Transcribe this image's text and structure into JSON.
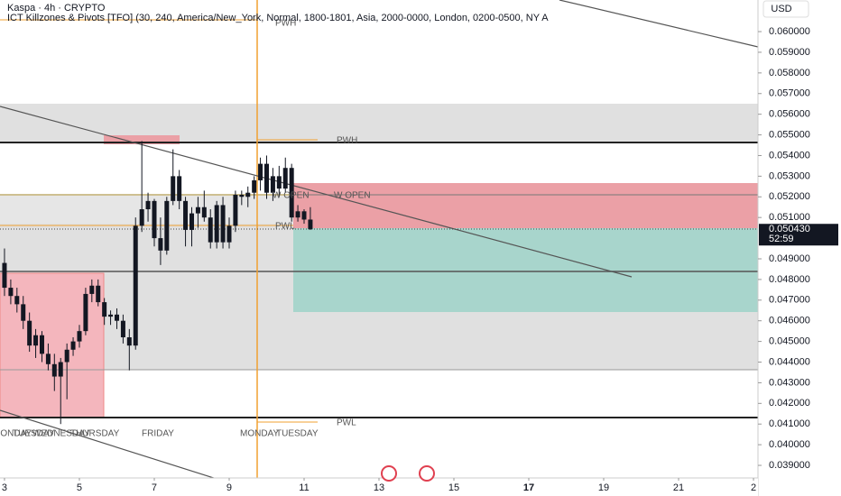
{
  "chart_data": {
    "type": "candlestick",
    "title": "Kaspa · 4h · CRYPTO",
    "subtitle": "ICT Killzones & Pivots [TFO] (30, 240, America/New_York, Normal, 1800-1801, Asia, 2000-0000, London, 0200-0500, NY A",
    "currency": "USD",
    "color": "#131722",
    "x": [
      3,
      3.167,
      3.333,
      3.5,
      3.667,
      3.833,
      4,
      4.167,
      4.333,
      4.5,
      4.667,
      4.833,
      5,
      5.167,
      5.333,
      5.5,
      5.667,
      5.833,
      6,
      6.167,
      6.333,
      6.5,
      6.667,
      6.833,
      7,
      7.167,
      7.333,
      7.5,
      7.667,
      7.833,
      8,
      8.167,
      8.333,
      8.5,
      8.667,
      8.833,
      9,
      9.167,
      9.333,
      9.5,
      9.667,
      9.833,
      10,
      10.167,
      10.333,
      10.5,
      10.667,
      10.833,
      11,
      11.167
    ],
    "open": [
      0.0488,
      0.0476,
      0.0472,
      0.0468,
      0.046,
      0.0448,
      0.0453,
      0.0444,
      0.0439,
      0.0433,
      0.044,
      0.0446,
      0.045,
      0.0455,
      0.0473,
      0.0477,
      0.0469,
      0.0462,
      0.0463,
      0.046,
      0.0452,
      0.0448,
      0.0506,
      0.0514,
      0.0518,
      0.05,
      0.0494,
      0.0518,
      0.053,
      0.0518,
      0.0504,
      0.0512,
      0.0515,
      0.051,
      0.0498,
      0.0516,
      0.0498,
      0.0506,
      0.0521,
      0.052,
      0.0522,
      0.0528,
      0.0536,
      0.0522,
      0.053,
      0.0524,
      0.0534,
      0.051,
      0.0513,
      0.0509
    ],
    "high": [
      0.0495,
      0.048,
      0.0476,
      0.0472,
      0.0464,
      0.0456,
      0.0455,
      0.0449,
      0.0444,
      0.0442,
      0.0449,
      0.0452,
      0.0458,
      0.0476,
      0.048,
      0.048,
      0.0471,
      0.0465,
      0.0466,
      0.0463,
      0.0456,
      0.051,
      0.0547,
      0.0522,
      0.0519,
      0.051,
      0.052,
      0.0543,
      0.0533,
      0.052,
      0.0515,
      0.052,
      0.0523,
      0.0514,
      0.0518,
      0.052,
      0.051,
      0.0523,
      0.0523,
      0.0525,
      0.053,
      0.0539,
      0.054,
      0.0534,
      0.0535,
      0.0539,
      0.0536,
      0.0516,
      0.0514,
      0.0515
    ],
    "low": [
      0.0472,
      0.0468,
      0.0464,
      0.0456,
      0.0445,
      0.0442,
      0.044,
      0.0436,
      0.0426,
      0.041,
      0.0422,
      0.0443,
      0.0447,
      0.0453,
      0.0469,
      0.0467,
      0.0458,
      0.0458,
      0.0456,
      0.0449,
      0.0436,
      0.0446,
      0.0503,
      0.0508,
      0.0496,
      0.0487,
      0.0492,
      0.0516,
      0.0514,
      0.0496,
      0.0496,
      0.0505,
      0.0508,
      0.0495,
      0.0495,
      0.0495,
      0.0495,
      0.0503,
      0.0516,
      0.0515,
      0.0519,
      0.0523,
      0.0519,
      0.0518,
      0.052,
      0.0522,
      0.0508,
      0.0508,
      0.0507,
      0.0504
    ],
    "close": [
      0.0476,
      0.0472,
      0.0468,
      0.046,
      0.0448,
      0.0453,
      0.0444,
      0.0439,
      0.0433,
      0.044,
      0.0446,
      0.045,
      0.0455,
      0.0473,
      0.0477,
      0.0469,
      0.0462,
      0.0463,
      0.046,
      0.0452,
      0.0448,
      0.0506,
      0.0514,
      0.0518,
      0.05,
      0.0494,
      0.0518,
      0.053,
      0.0518,
      0.0504,
      0.0512,
      0.0515,
      0.051,
      0.0498,
      0.0516,
      0.0498,
      0.0506,
      0.0521,
      0.052,
      0.0522,
      0.0528,
      0.0536,
      0.0522,
      0.053,
      0.0524,
      0.0534,
      0.051,
      0.0513,
      0.0509,
      0.05043
    ],
    "xlim": [
      2.88,
      23.12
    ],
    "xticks": [
      3,
      5,
      7,
      9,
      11,
      13,
      15,
      17,
      19,
      21,
      {
        "value": 23,
        "label": "2"
      }
    ],
    "ylim": [
      0.03839,
      0.06153
    ],
    "yticks": [
      {
        "value": 0.039,
        "label": "0.039000"
      },
      {
        "value": 0.04,
        "label": "0.040000"
      },
      {
        "value": 0.041,
        "label": "0.041000"
      },
      {
        "value": 0.042,
        "label": "0.042000"
      },
      {
        "value": 0.043,
        "label": "0.043000"
      },
      {
        "value": 0.044,
        "label": "0.044000"
      },
      {
        "value": 0.045,
        "label": "0.045000"
      },
      {
        "value": 0.046,
        "label": "0.046000"
      },
      {
        "value": 0.047,
        "label": "0.047000"
      },
      {
        "value": 0.048,
        "label": "0.048000"
      },
      {
        "value": 0.049,
        "label": "0.049000"
      },
      {
        "value": 0.051,
        "label": "0.051000"
      },
      {
        "value": 0.052,
        "label": "0.052000"
      },
      {
        "value": 0.053,
        "label": "0.053000"
      },
      {
        "value": 0.054,
        "label": "0.054000"
      },
      {
        "value": 0.055,
        "label": "0.055000"
      },
      {
        "value": 0.056,
        "label": "0.056000"
      },
      {
        "value": 0.057,
        "label": "0.057000"
      },
      {
        "value": 0.058,
        "label": "0.058000"
      },
      {
        "value": 0.059,
        "label": "0.059000"
      },
      {
        "value": 0.06,
        "label": "0.060000"
      }
    ],
    "last_price": {
      "value": 0.05043,
      "label": "0.050430"
    },
    "countdown": "52:59",
    "annotations": [
      "PWH",
      "PWH",
      "W OPEN",
      "W OPEN",
      "PWL",
      "PWL",
      "MONDAY",
      "TUESDAY",
      "WEDNESDAY",
      "THURSDAY",
      "FRIDAY",
      "MONDAY",
      "TUESDAY"
    ]
  }
}
